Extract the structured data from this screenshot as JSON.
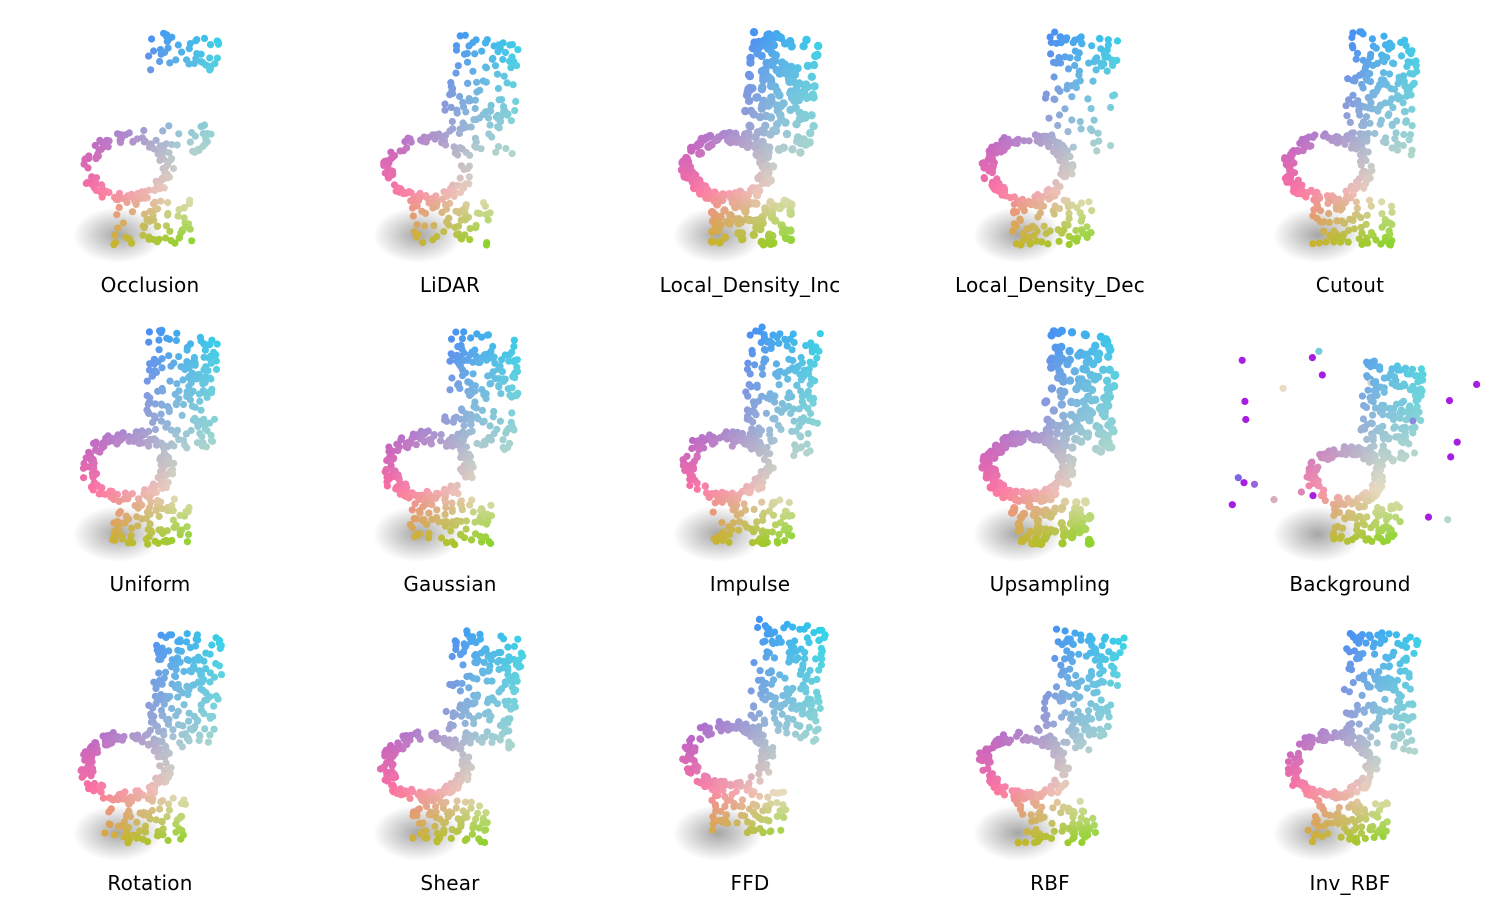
{
  "panels": [
    {
      "label": "Occlusion",
      "variant": "occlusion"
    },
    {
      "label": "LiDAR",
      "variant": "lidar"
    },
    {
      "label": "Local_Density_Inc",
      "variant": "density_inc"
    },
    {
      "label": "Local_Density_Dec",
      "variant": "density_dec"
    },
    {
      "label": "Cutout",
      "variant": "cutout"
    },
    {
      "label": "Uniform",
      "variant": "uniform"
    },
    {
      "label": "Gaussian",
      "variant": "gaussian"
    },
    {
      "label": "Impulse",
      "variant": "impulse"
    },
    {
      "label": "Upsampling",
      "variant": "upsampling"
    },
    {
      "label": "Background",
      "variant": "background"
    },
    {
      "label": "Rotation",
      "variant": "rotation"
    },
    {
      "label": "Shear",
      "variant": "shear"
    },
    {
      "label": "FFD",
      "variant": "ffd"
    },
    {
      "label": "RBF",
      "variant": "rbf"
    },
    {
      "label": "Inv_RBF",
      "variant": "inv_rbf"
    }
  ],
  "colors": {
    "back_top": "#5a55ff",
    "back_side": "#27d8e8",
    "seat_left": "#ff6fa0",
    "seat_mid": "#e8dcc0",
    "base_left": "#d8b020",
    "base_right": "#62e01e",
    "outlier_violet": "#a81ee0",
    "label_text": "#000000"
  }
}
